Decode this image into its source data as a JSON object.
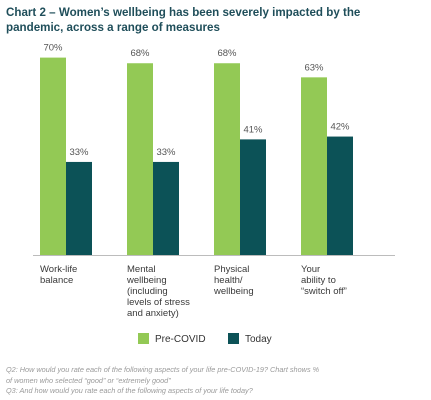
{
  "title_lines": [
    "Chart 2 – Women’s wellbeing has been severely impacted by the",
    "pandemic, across a range of measures"
  ],
  "colors": {
    "pre_covid": "#93c955",
    "today": "#0c5257",
    "axis": "#bcbcbc",
    "label_text": "#555555"
  },
  "chart_data": {
    "type": "bar",
    "categories": [
      [
        "Work-life",
        "balance"
      ],
      [
        "Mental",
        "wellbeing",
        "(including",
        "levels of stress",
        "and anxiety)"
      ],
      [
        "Physical",
        "health/",
        "wellbeing"
      ],
      [
        "Your",
        "ability to",
        "“switch off”"
      ]
    ],
    "series": [
      {
        "name": "Pre-COVID",
        "values": [
          70,
          68,
          68,
          63
        ],
        "labels": [
          "70%",
          "68%",
          "68%",
          "63%"
        ]
      },
      {
        "name": "Today",
        "values": [
          33,
          33,
          41,
          42
        ],
        "labels": [
          "33%",
          "33%",
          "41%",
          "42%"
        ]
      }
    ],
    "ylim": [
      0,
      100
    ],
    "legend_position": "bottom-center",
    "grid": false
  },
  "legend": {
    "pre_covid_label": "Pre-COVID",
    "today_label": "Today"
  },
  "footnote": {
    "line1": "Q2: How would you rate each of the following aspects of your life pre-COVID-19? Chart shows %",
    "line2": "of women who selected “good” or “extremely good”",
    "line3": "Q3: And how would you rate each of the following aspects of your life today?"
  }
}
